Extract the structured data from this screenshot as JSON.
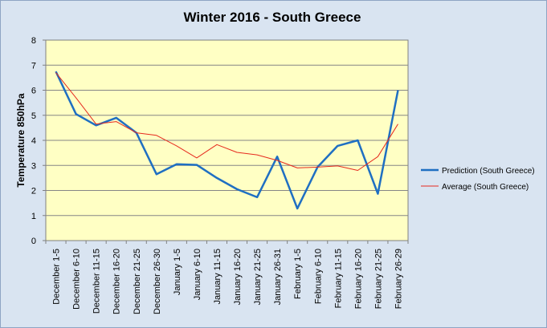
{
  "chart_data": {
    "type": "line",
    "title": "Winter 2016 - South Greece",
    "xlabel": "",
    "ylabel": "Temperature 850hPa",
    "ylim": [
      0,
      8
    ],
    "yticks": [
      0,
      1,
      2,
      3,
      4,
      5,
      6,
      7,
      8
    ],
    "grid": true,
    "legend_position": "right",
    "categories": [
      "December 1-5",
      "December 6-10",
      "December 11-15",
      "December 16-20",
      "December 21-25",
      "December 26-30",
      "January 1-5",
      "January 6-10",
      "January 11-15",
      "January 16-20",
      "January 21-25",
      "January 26-31",
      "February 1-5",
      "February 6-10",
      "February 11-15",
      "February 16-20",
      "February 21-25",
      "February 26-29"
    ],
    "series": [
      {
        "name": "Prediction (South Greece)",
        "color": "#1f6fc2",
        "values": [
          6.75,
          5.05,
          4.6,
          4.9,
          4.3,
          2.65,
          3.05,
          3.02,
          2.5,
          2.05,
          1.73,
          3.35,
          1.28,
          2.93,
          3.78,
          4.0,
          1.87,
          6.0
        ]
      },
      {
        "name": "Average (South Greece)",
        "color": "#e62a1e",
        "values": [
          6.7,
          5.7,
          4.65,
          4.75,
          4.3,
          4.2,
          3.78,
          3.3,
          3.83,
          3.52,
          3.42,
          3.2,
          2.9,
          2.93,
          2.98,
          2.8,
          3.35,
          4.65
        ]
      }
    ]
  }
}
